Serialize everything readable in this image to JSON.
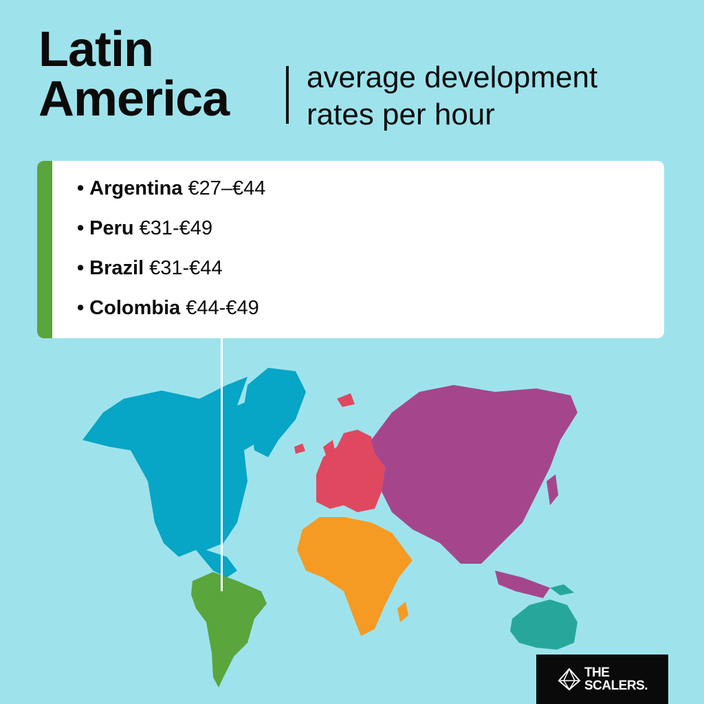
{
  "header": {
    "title_line1": "Latin",
    "title_line2": "America",
    "subtitle_line1": "average development",
    "subtitle_line2": "rates per hour"
  },
  "rates": [
    {
      "bullet": "•",
      "country": "Argentina",
      "range": "€27–€44"
    },
    {
      "bullet": "•",
      "country": "Peru",
      "range": "€31-€49"
    },
    {
      "bullet": "•",
      "country": "Brazil",
      "range": "€31-€44"
    },
    {
      "bullet": "•",
      "country": "Colombia",
      "range": "€44-€49"
    }
  ],
  "map": {
    "background_color": "#9ee3ec",
    "regions": [
      {
        "name": "north-america",
        "color": "#07a5c6"
      },
      {
        "name": "south-america",
        "color": "#5aa53c"
      },
      {
        "name": "europe",
        "color": "#e04860"
      },
      {
        "name": "africa",
        "color": "#f59a23"
      },
      {
        "name": "asia",
        "color": "#a5468c"
      },
      {
        "name": "oceania",
        "color": "#27a79b"
      }
    ]
  },
  "brand": {
    "logo_line1": "THE",
    "logo_line2": "SCALERS.",
    "accent_color": "#5aa53c"
  }
}
